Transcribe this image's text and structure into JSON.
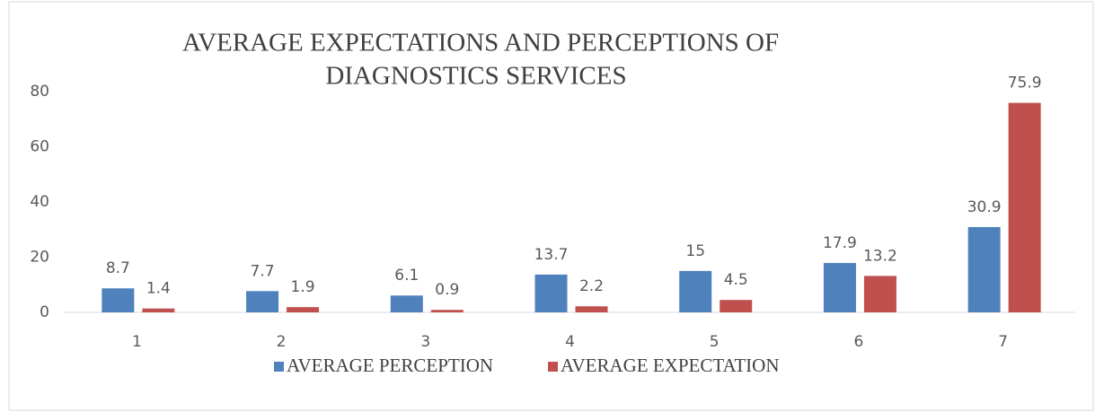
{
  "chart_data": {
    "type": "bar",
    "title": [
      "AVERAGE EXPECTATIONS  AND PERCEPTIONS  OF",
      "DIAGNOSTICS SERVICES"
    ],
    "categories": [
      "1",
      "2",
      "3",
      "4",
      "5",
      "6",
      "7"
    ],
    "series": [
      {
        "name": "AVERAGE PERCEPTION",
        "color": "#4f81bd",
        "values": [
          8.7,
          7.7,
          6.1,
          13.7,
          15,
          17.9,
          30.9
        ]
      },
      {
        "name": "AVERAGE EXPECTATION",
        "color": "#c0504d",
        "values": [
          1.4,
          1.9,
          0.9,
          2.2,
          4.5,
          13.2,
          75.9
        ]
      }
    ],
    "ylim": [
      0,
      80
    ],
    "yticks": [
      0,
      20,
      40,
      60,
      80
    ],
    "grid": false,
    "legend": "bottom"
  }
}
